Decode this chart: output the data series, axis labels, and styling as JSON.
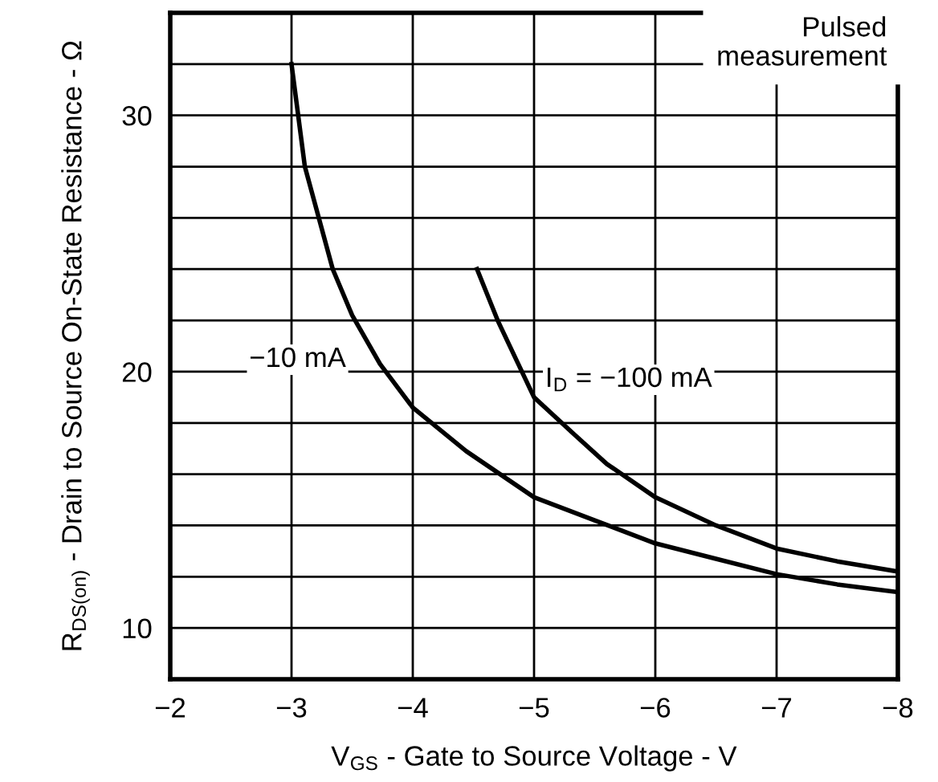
{
  "chart_data": {
    "type": "line",
    "xlabel": "V$_{GS}$ - Gate to Source Voltage - V",
    "ylabel": "R$_{DS(on)}$ - Drain to Source On-State Resistance - Ω",
    "series": [
      {
        "color": "#000000",
        "x": [
          -3.0,
          -3.11,
          -3.34,
          -3.5,
          -3.73,
          -4.0,
          -4.44,
          -5.0,
          -5.5,
          -6.0,
          -6.5,
          -7.0,
          -7.5,
          -8.0
        ],
        "values": [
          32,
          28,
          24,
          22.2,
          20.3,
          18.6,
          16.9,
          15.1,
          14.2,
          13.3,
          12.7,
          12.1,
          11.7,
          11.4
        ]
      },
      {
        "color": "#000000",
        "x": [
          -4.53,
          -4.7,
          -4.87,
          -5.0,
          -5.32,
          -5.6,
          -6.0,
          -6.5,
          -7.0,
          -7.5,
          -8.0
        ],
        "values": [
          24,
          22.0,
          20.3,
          19.0,
          17.6,
          16.4,
          15.1,
          14.0,
          13.1,
          12.6,
          12.2
        ]
      }
    ],
    "xlim": [
      -2,
      -8
    ],
    "ylim": [
      8,
      34
    ],
    "xticks": [
      {
        "value": -2,
        "label": "−2"
      },
      {
        "value": -3,
        "label": "−3"
      },
      {
        "value": -4,
        "label": "−4"
      },
      {
        "value": -5,
        "label": "−5"
      },
      {
        "value": -6,
        "label": "−6"
      },
      {
        "value": -7,
        "label": "−7"
      },
      {
        "value": -8,
        "label": "−8"
      }
    ],
    "yticks": [
      {
        "value": 8,
        "label": null
      },
      10,
      {
        "value": 12,
        "label": null
      },
      {
        "value": 14,
        "label": null
      },
      {
        "value": 16,
        "label": null
      },
      {
        "value": 18,
        "label": null
      },
      20,
      {
        "value": 22,
        "label": null
      },
      {
        "value": 24,
        "label": null
      },
      {
        "value": 26,
        "label": null
      },
      {
        "value": 28,
        "label": null
      },
      30,
      {
        "value": 32,
        "label": null
      }
    ],
    "grid": true,
    "legend": false,
    "marker": "none",
    "line_style": "solid",
    "annotations": [
      "−10 mA",
      "I$_{D}$ = −100 mA",
      "Pulsed\nmeasurement"
    ]
  }
}
